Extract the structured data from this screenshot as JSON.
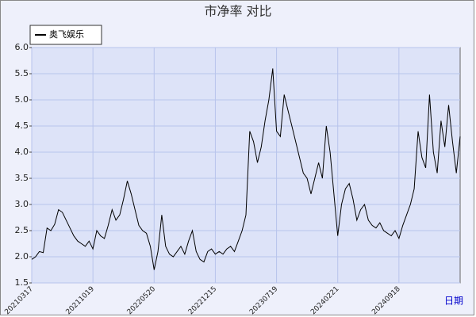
{
  "chart_data": {
    "type": "line",
    "title": "市净率  对比",
    "x_label": "日期",
    "categories": [
      "20210317",
      null,
      null,
      null,
      null,
      null,
      null,
      null,
      null,
      null,
      null,
      null,
      null,
      null,
      null,
      null,
      "20211019",
      null,
      null,
      null,
      null,
      null,
      null,
      null,
      null,
      null,
      null,
      null,
      null,
      null,
      null,
      null,
      "20220520",
      null,
      null,
      null,
      null,
      null,
      null,
      null,
      null,
      null,
      null,
      null,
      null,
      null,
      null,
      null,
      "20221215",
      null,
      null,
      null,
      null,
      null,
      null,
      null,
      null,
      null,
      null,
      null,
      null,
      null,
      null,
      null,
      "20230719",
      null,
      null,
      null,
      null,
      null,
      null,
      null,
      null,
      null,
      null,
      null,
      null,
      null,
      null,
      null,
      "20240221",
      null,
      null,
      null,
      null,
      null,
      null,
      null,
      null,
      null,
      null,
      null,
      null,
      null,
      null,
      null,
      "20240918",
      null,
      null,
      null,
      null,
      null,
      null,
      null,
      null,
      null,
      null,
      null,
      null,
      null,
      null,
      null,
      null
    ],
    "series": [
      {
        "name": "奥飞娱乐",
        "color": "#000000",
        "values": [
          1.95,
          2.0,
          2.1,
          2.08,
          2.55,
          2.5,
          2.62,
          2.9,
          2.85,
          2.7,
          2.55,
          2.4,
          2.3,
          2.25,
          2.2,
          2.3,
          2.15,
          2.5,
          2.4,
          2.35,
          2.6,
          2.9,
          2.7,
          2.8,
          3.1,
          3.45,
          3.2,
          2.9,
          2.6,
          2.5,
          2.45,
          2.2,
          1.75,
          2.1,
          2.8,
          2.2,
          2.05,
          2.0,
          2.1,
          2.2,
          2.05,
          2.3,
          2.5,
          2.1,
          1.95,
          1.9,
          2.1,
          2.15,
          2.05,
          2.1,
          2.05,
          2.15,
          2.2,
          2.1,
          2.3,
          2.5,
          2.8,
          4.4,
          4.2,
          3.8,
          4.1,
          4.6,
          5.0,
          5.6,
          4.4,
          4.3,
          5.1,
          4.8,
          4.5,
          4.2,
          3.9,
          3.6,
          3.5,
          3.2,
          3.5,
          3.8,
          3.5,
          4.5,
          4.0,
          3.2,
          2.4,
          3.0,
          3.3,
          3.4,
          3.1,
          2.7,
          2.9,
          3.0,
          2.7,
          2.6,
          2.55,
          2.65,
          2.5,
          2.45,
          2.4,
          2.5,
          2.35,
          2.6,
          2.8,
          3.0,
          3.3,
          4.4,
          3.9,
          3.7,
          5.1,
          4.0,
          3.6,
          4.6,
          4.1,
          4.9,
          4.2,
          3.6,
          4.3
        ]
      }
    ],
    "ylim": [
      1.5,
      6.0
    ],
    "yticks": [
      1.5,
      {
        "value": 2,
        "label": "2.0"
      },
      2.5,
      {
        "value": 3,
        "label": "3.0"
      },
      3.5,
      {
        "value": 4,
        "label": "4.0"
      },
      4.5,
      {
        "value": 5,
        "label": "5.0"
      },
      5.5,
      {
        "value": 6,
        "label": "6.0"
      }
    ],
    "grid": true
  }
}
